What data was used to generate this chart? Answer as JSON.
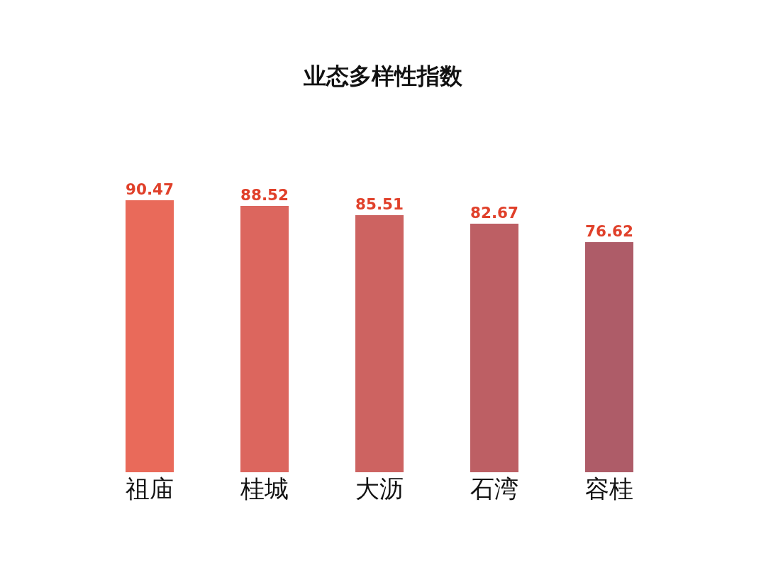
{
  "chart_data": {
    "type": "bar",
    "title": "业态多样性指数",
    "categories": [
      "祖庙",
      "桂城",
      "大沥",
      "石湾",
      "容桂"
    ],
    "values": [
      90.47,
      88.52,
      85.51,
      82.67,
      76.62
    ],
    "colors": [
      "#e96a5a",
      "#dc665e",
      "#cd6361",
      "#bd5f64",
      "#ae5c68"
    ],
    "data_labels": true
  }
}
